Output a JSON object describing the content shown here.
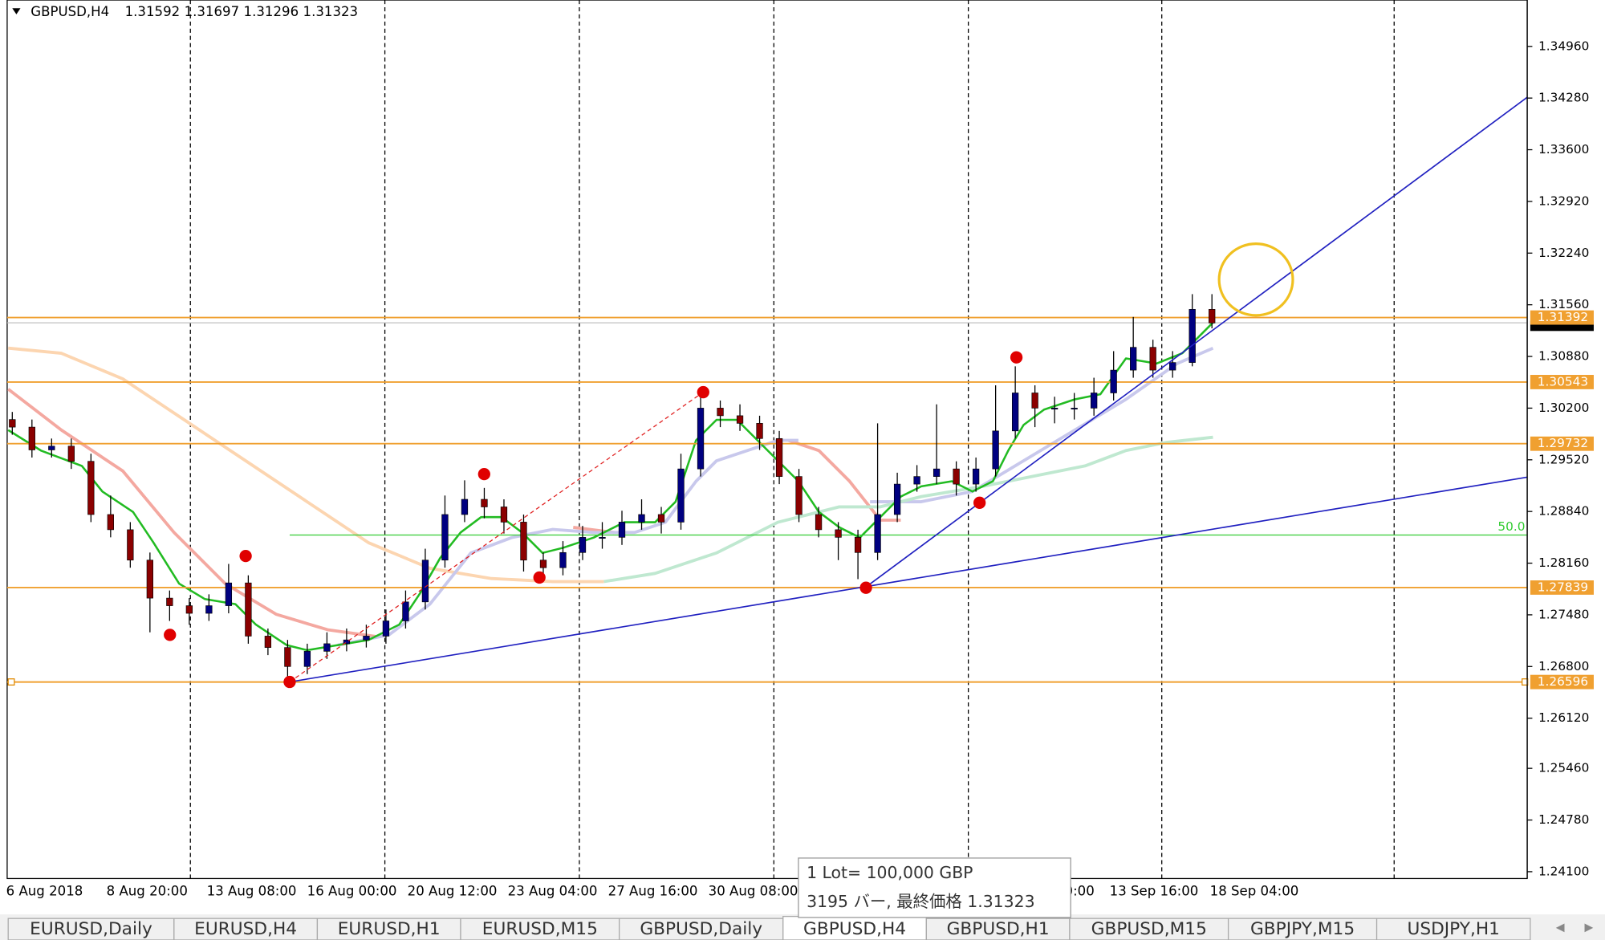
{
  "header": {
    "symbol": "GBPUSD,H4",
    "quote": [
      "1.31592",
      "1.31697",
      "1.31296",
      "1.31323"
    ]
  },
  "chart_data": {
    "type": "candlestick",
    "ylim": [
      1.2401,
      1.3557
    ],
    "yticks": [
      {
        "value": 1.3496,
        "label": "1.34960"
      },
      {
        "value": 1.3428,
        "label": "1.34280"
      },
      {
        "value": 1.336,
        "label": "1.33600"
      },
      {
        "value": 1.3292,
        "label": "1.32920"
      },
      {
        "value": 1.3224,
        "label": "1.32240"
      },
      {
        "value": 1.3156,
        "label": "1.31560"
      },
      {
        "value": 1.3088,
        "label": "1.30880"
      },
      {
        "value": 1.302,
        "label": "1.30200"
      },
      {
        "value": 1.2952,
        "label": "1.29520"
      },
      {
        "value": 1.2884,
        "label": "1.28840"
      },
      {
        "value": 1.2816,
        "label": "1.28160"
      },
      {
        "value": 1.2748,
        "label": "1.27480"
      },
      {
        "value": 1.268,
        "label": "1.26800"
      },
      {
        "value": 1.2612,
        "label": "1.26120"
      },
      {
        "value": 1.2546,
        "label": "1.25460"
      },
      {
        "value": 1.2478,
        "label": "1.24780"
      },
      {
        "value": 1.241,
        "label": "1.24100"
      }
    ],
    "x": [
      "6 Aug 2018",
      "8 Aug 20:00",
      "13 Aug 08:00",
      "16 Aug 00:00",
      "20 Aug 12:00",
      "23 Aug 04:00",
      "27 Aug 16:00",
      "30 Aug 08:00",
      "0:00",
      "13 Sep 16:00",
      "18 Sep 04:00"
    ],
    "levels": [
      1.31392,
      1.30543,
      1.29732,
      1.27839,
      1.26596
    ],
    "bid": 1.31323,
    "fib": {
      "level": 1.2853,
      "label": "50.0"
    },
    "candles": [
      [
        1.3005,
        1.3015,
        1.2985,
        1.2995
      ],
      [
        1.2995,
        1.3005,
        1.2955,
        1.2965
      ],
      [
        1.2965,
        1.298,
        1.2955,
        1.297
      ],
      [
        1.297,
        1.298,
        1.294,
        1.295
      ],
      [
        1.295,
        1.296,
        1.287,
        1.288
      ],
      [
        1.288,
        1.2905,
        1.285,
        1.286
      ],
      [
        1.286,
        1.287,
        1.281,
        1.282
      ],
      [
        1.282,
        1.283,
        1.2725,
        1.277
      ],
      [
        1.277,
        1.278,
        1.274,
        1.276
      ],
      [
        1.276,
        1.277,
        1.2735,
        1.275
      ],
      [
        1.275,
        1.2775,
        1.274,
        1.276
      ],
      [
        1.276,
        1.2815,
        1.275,
        1.279
      ],
      [
        1.279,
        1.28,
        1.271,
        1.272
      ],
      [
        1.272,
        1.273,
        1.2695,
        1.2705
      ],
      [
        1.2705,
        1.2715,
        1.266,
        1.268
      ],
      [
        1.268,
        1.271,
        1.267,
        1.27
      ],
      [
        1.27,
        1.2725,
        1.269,
        1.271
      ],
      [
        1.271,
        1.273,
        1.27,
        1.2715
      ],
      [
        1.2715,
        1.2735,
        1.2705,
        1.272
      ],
      [
        1.272,
        1.2755,
        1.271,
        1.274
      ],
      [
        1.274,
        1.278,
        1.273,
        1.2765
      ],
      [
        1.2765,
        1.2835,
        1.2755,
        1.282
      ],
      [
        1.282,
        1.2905,
        1.281,
        1.288
      ],
      [
        1.288,
        1.2925,
        1.287,
        1.29
      ],
      [
        1.29,
        1.2915,
        1.2875,
        1.289
      ],
      [
        1.289,
        1.29,
        1.2855,
        1.287
      ],
      [
        1.287,
        1.288,
        1.2805,
        1.282
      ],
      [
        1.282,
        1.283,
        1.2795,
        1.281
      ],
      [
        1.281,
        1.2845,
        1.28,
        1.283
      ],
      [
        1.283,
        1.2865,
        1.282,
        1.285
      ],
      [
        1.285,
        1.287,
        1.2835,
        1.285
      ],
      [
        1.285,
        1.2885,
        1.284,
        1.287
      ],
      [
        1.287,
        1.29,
        1.286,
        1.288
      ],
      [
        1.288,
        1.289,
        1.2855,
        1.287
      ],
      [
        1.287,
        1.296,
        1.286,
        1.294
      ],
      [
        1.294,
        1.3035,
        1.293,
        1.302
      ],
      [
        1.302,
        1.303,
        1.2995,
        1.301
      ],
      [
        1.301,
        1.3025,
        1.299,
        1.3
      ],
      [
        1.3,
        1.301,
        1.2965,
        1.298
      ],
      [
        1.298,
        1.299,
        1.292,
        1.293
      ],
      [
        1.293,
        1.294,
        1.287,
        1.288
      ],
      [
        1.288,
        1.289,
        1.285,
        1.286
      ],
      [
        1.286,
        1.287,
        1.282,
        1.285
      ],
      [
        1.285,
        1.286,
        1.2795,
        1.283
      ],
      [
        1.283,
        1.3,
        1.282,
        1.288
      ],
      [
        1.288,
        1.2935,
        1.287,
        1.292
      ],
      [
        1.292,
        1.2945,
        1.291,
        1.293
      ],
      [
        1.293,
        1.3025,
        1.292,
        1.294
      ],
      [
        1.294,
        1.295,
        1.2905,
        1.292
      ],
      [
        1.292,
        1.2955,
        1.291,
        1.294
      ],
      [
        1.294,
        1.305,
        1.293,
        1.299
      ],
      [
        1.299,
        1.3075,
        1.298,
        1.304
      ],
      [
        1.304,
        1.305,
        1.2995,
        1.302
      ],
      [
        1.302,
        1.3035,
        1.3,
        1.302
      ],
      [
        1.302,
        1.304,
        1.3005,
        1.302
      ],
      [
        1.302,
        1.306,
        1.301,
        1.304
      ],
      [
        1.304,
        1.3095,
        1.303,
        1.307
      ],
      [
        1.307,
        1.314,
        1.306,
        1.31
      ],
      [
        1.31,
        1.311,
        1.306,
        1.307
      ],
      [
        1.307,
        1.3095,
        1.306,
        1.308
      ],
      [
        1.308,
        1.317,
        1.3075,
        1.315
      ],
      [
        1.315,
        1.317,
        1.3125,
        1.3132
      ]
    ]
  },
  "tooltip": [
    "1 Lot= 100,000 GBP",
    "3195 バー, 最終価格 1.31323"
  ],
  "tabs": [
    "EURUSD,Daily",
    "EURUSD,H4",
    "EURUSD,H1",
    "EURUSD,M15",
    "GBPUSD,Daily",
    "GBPUSD,H4",
    "GBPUSD,H1",
    "GBPUSD,M15",
    "GBPJPY,M15",
    "USDJPY,H1"
  ]
}
